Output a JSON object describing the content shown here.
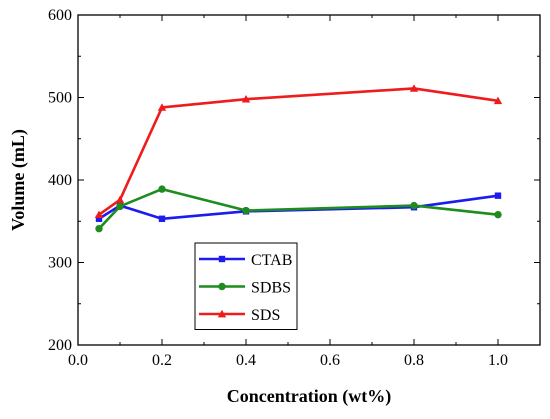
{
  "chart_data": {
    "type": "line",
    "xlabel": "Concentration (wt%)",
    "ylabel": "Volume (mL)",
    "xlim": [
      0.0,
      1.1
    ],
    "ylim": [
      200,
      600
    ],
    "x_ticks": [
      "0.0",
      "0.2",
      "0.4",
      "0.6",
      "0.8",
      "1.0"
    ],
    "y_ticks": [
      "200",
      "300",
      "400",
      "500",
      "600"
    ],
    "grid": false,
    "legend_position": "bottom-left",
    "series": [
      {
        "name": "CTAB",
        "color": "#1c1cf0",
        "marker": "square",
        "x": [
          0.05,
          0.1,
          0.2,
          0.4,
          0.8,
          1.0
        ],
        "y": [
          353,
          369,
          353,
          362,
          367,
          381
        ]
      },
      {
        "name": "SDBS",
        "color": "#1e8c1e",
        "marker": "circle",
        "x": [
          0.05,
          0.1,
          0.2,
          0.4,
          0.8,
          1.0
        ],
        "y": [
          341,
          368,
          389,
          363,
          369,
          358
        ]
      },
      {
        "name": "SDS",
        "color": "#ee1c1c",
        "marker": "triangle",
        "x": [
          0.05,
          0.1,
          0.2,
          0.4,
          0.8,
          1.0
        ],
        "y": [
          358,
          376,
          488,
          498,
          511,
          496
        ]
      }
    ]
  }
}
